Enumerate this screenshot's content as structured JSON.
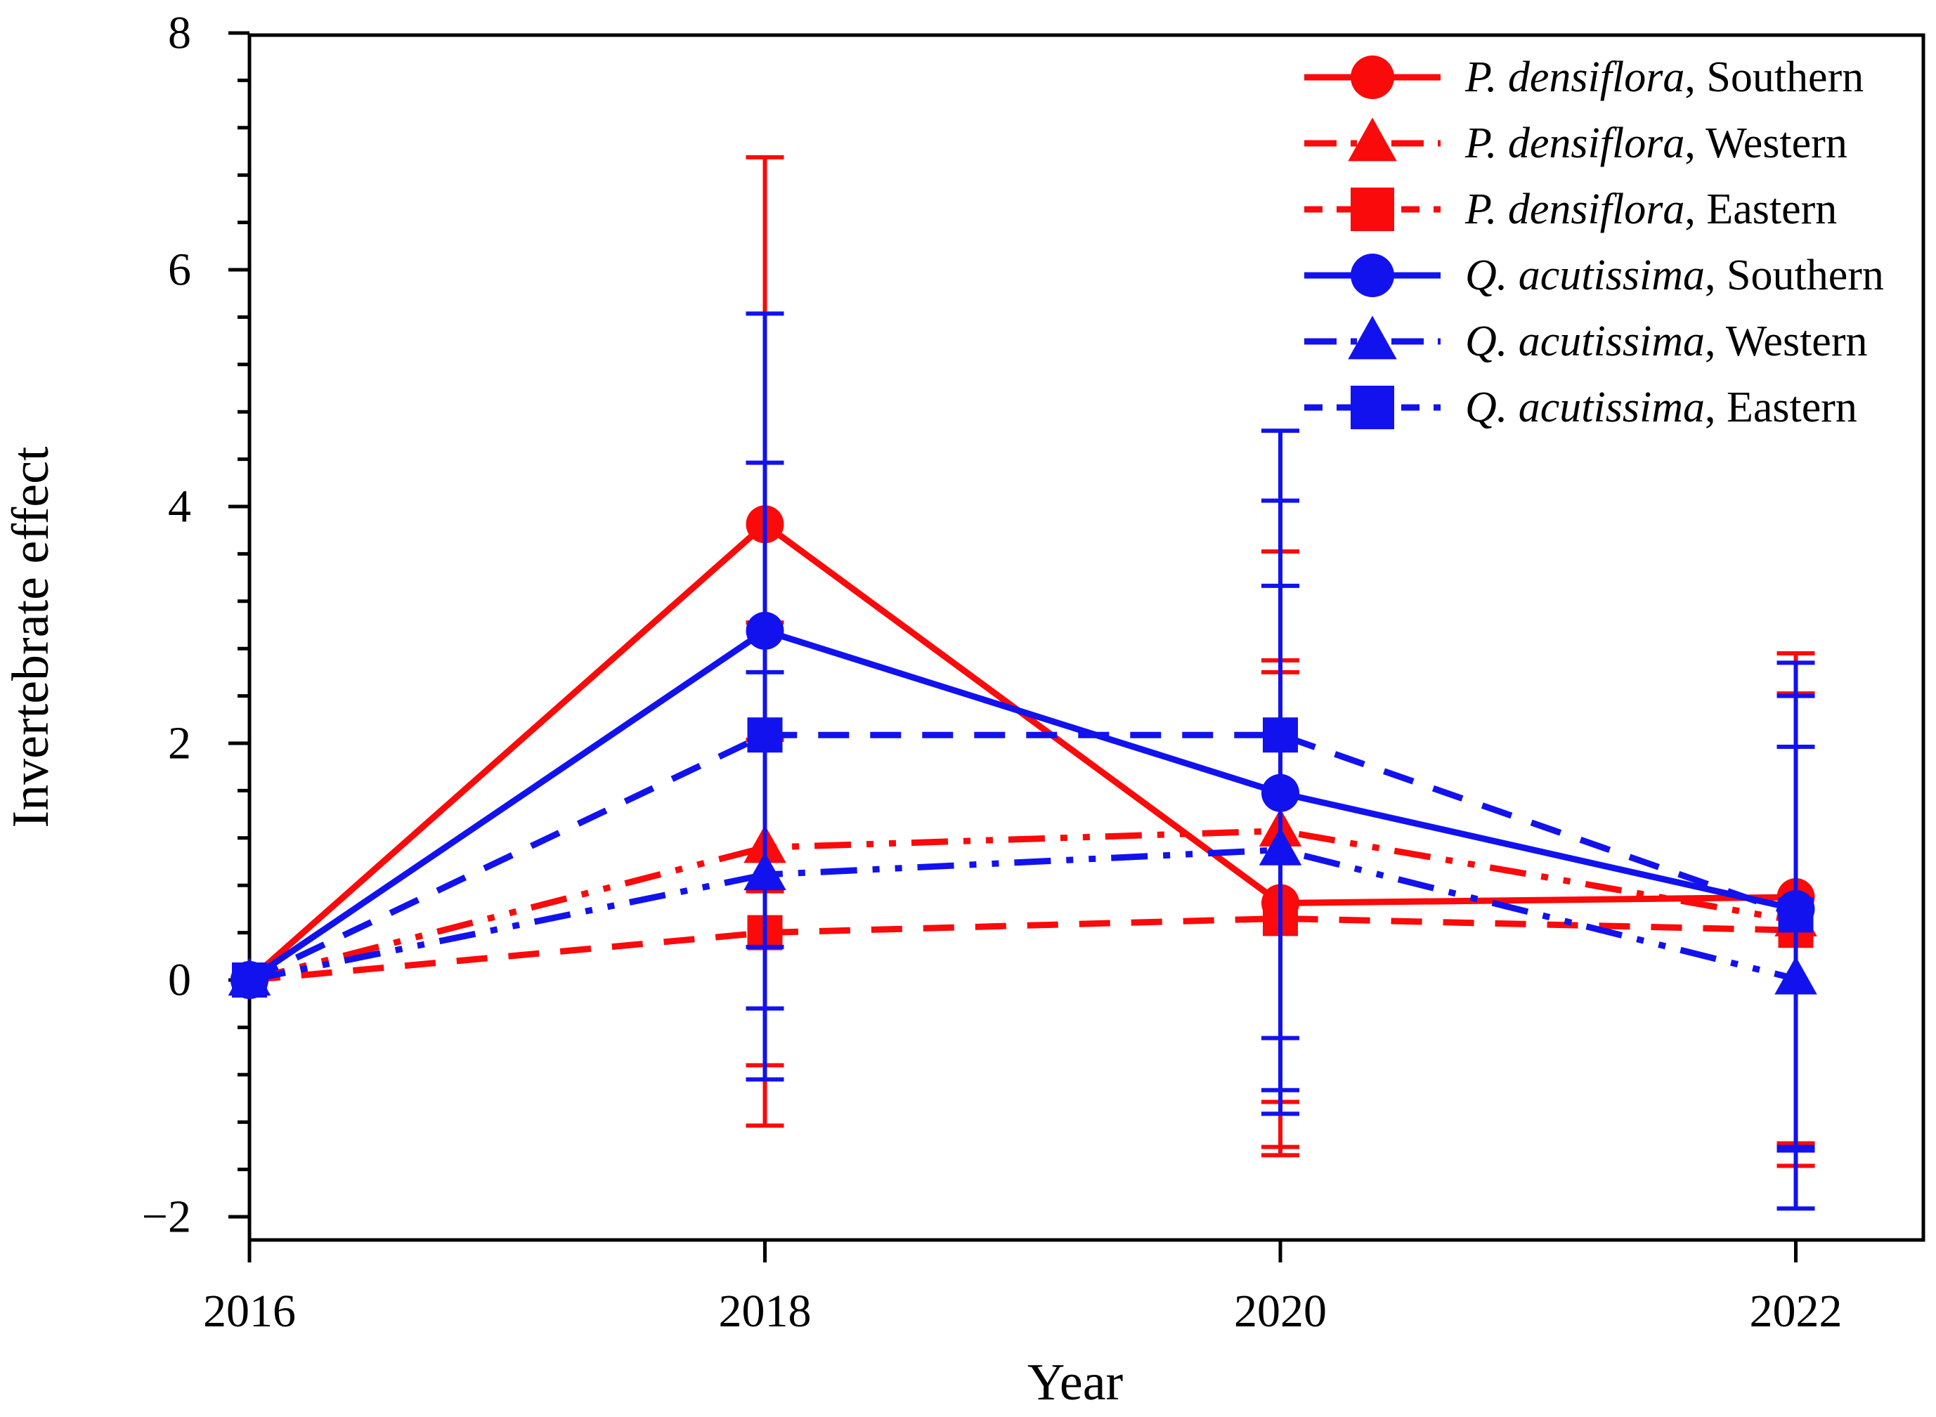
{
  "chart_data": {
    "type": "line",
    "title": "",
    "xlabel": "Year",
    "ylabel": "Invertebrate effect",
    "grid": false,
    "legend_position": "top-right",
    "x": [
      2016,
      2018,
      2020,
      2022
    ],
    "x_tick_labels": [
      "2016",
      "2018",
      "2020",
      "2022"
    ],
    "y_ticks": [
      8,
      6,
      4,
      2,
      0,
      -2
    ],
    "y_tick_labels": [
      "8",
      "6",
      "4",
      "2",
      "0",
      "−2"
    ],
    "y_minor_step": 0.4,
    "ylim": [
      -2.2,
      8.0
    ],
    "xlim": [
      2016,
      2022.5
    ],
    "colors": {
      "red": "#fa0a0a",
      "blue": "#1212ee"
    },
    "series": [
      {
        "species": "P. densiflora",
        "region": "Southern",
        "color": "red",
        "marker": "circle",
        "line": "solid",
        "values": [
          0,
          3.85,
          0.65,
          0.7
        ],
        "err_lo": [
          0,
          0.75,
          -1.41,
          -1.38
        ],
        "err_hi": [
          0,
          6.95,
          2.7,
          2.76
        ]
      },
      {
        "species": "P. densiflora",
        "region": "Western",
        "color": "red",
        "marker": "triangle",
        "line": "dashdotdot",
        "values": [
          0,
          1.12,
          1.26,
          0.5
        ],
        "err_lo": [
          0,
          -0.72,
          -1.03,
          -1.42
        ],
        "err_hi": [
          0,
          3.02,
          3.62,
          2.42
        ]
      },
      {
        "species": "P. densiflora",
        "region": "Eastern",
        "color": "red",
        "marker": "square",
        "line": "dashed",
        "values": [
          0,
          0.4,
          0.52,
          0.42
        ],
        "err_lo": [
          0,
          -1.23,
          -1.48,
          -1.57
        ],
        "err_hi": [
          0,
          2.03,
          2.6,
          2.42
        ]
      },
      {
        "species": "Q. acutissima",
        "region": "Southern",
        "color": "blue",
        "marker": "circle",
        "line": "solid",
        "values": [
          0,
          2.95,
          1.58,
          0.6
        ],
        "err_lo": [
          0,
          0.28,
          -0.93,
          -1.44
        ],
        "err_hi": [
          0,
          5.63,
          4.05,
          2.68
        ]
      },
      {
        "species": "Q. acutissima",
        "region": "Western",
        "color": "blue",
        "marker": "triangle",
        "line": "dashdotdot",
        "values": [
          0,
          0.89,
          1.1,
          0.01
        ],
        "err_lo": [
          0,
          -0.84,
          -1.13,
          -1.93
        ],
        "err_hi": [
          0,
          2.6,
          3.33,
          1.97
        ]
      },
      {
        "species": "Q. acutissima",
        "region": "Eastern",
        "color": "blue",
        "marker": "square",
        "line": "dashed",
        "values": [
          0,
          2.07,
          2.07,
          0.55
        ],
        "err_lo": [
          0,
          -0.24,
          -0.49,
          -1.41
        ],
        "err_hi": [
          0,
          4.37,
          4.64,
          2.4
        ]
      }
    ]
  }
}
